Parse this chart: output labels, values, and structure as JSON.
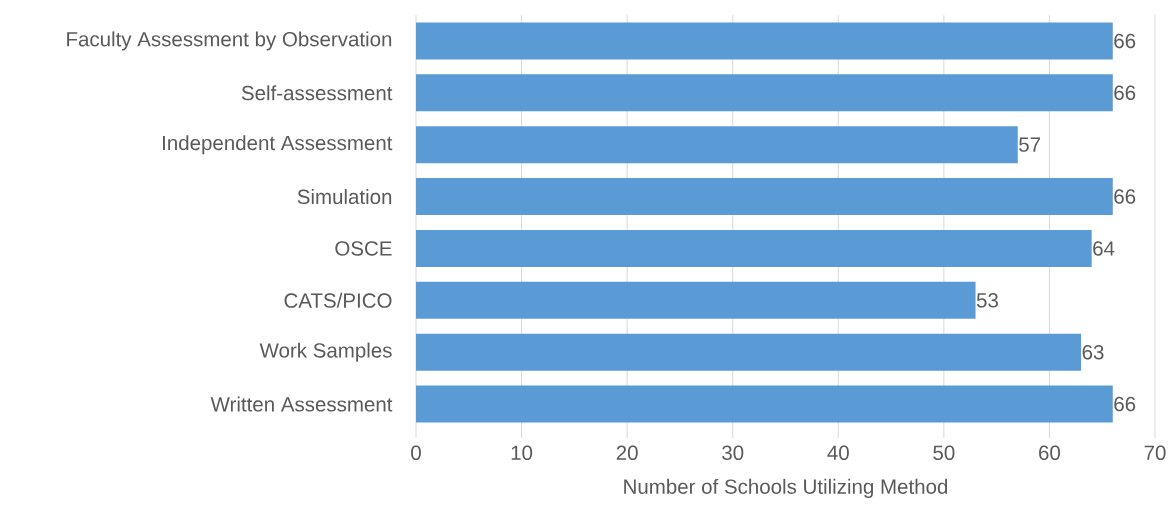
{
  "chart_data": {
    "type": "bar",
    "orientation": "horizontal",
    "xlabel": "Number of Schools Utilizing Method",
    "categories": [
      "Faculty Assessment by Observation",
      "Self-assessment",
      "Independent Assessment",
      "Simulation",
      "OSCE",
      "CATS/PICO",
      "Work Samples",
      "Written Assessment"
    ],
    "values": [
      66,
      66,
      57,
      66,
      64,
      53,
      63,
      66
    ],
    "color": "#5b9bd5",
    "xlim": [
      0,
      70
    ],
    "xticks": [
      0,
      10,
      20,
      30,
      40,
      50,
      60,
      70
    ],
    "grid": "x",
    "data_labels": true
  }
}
